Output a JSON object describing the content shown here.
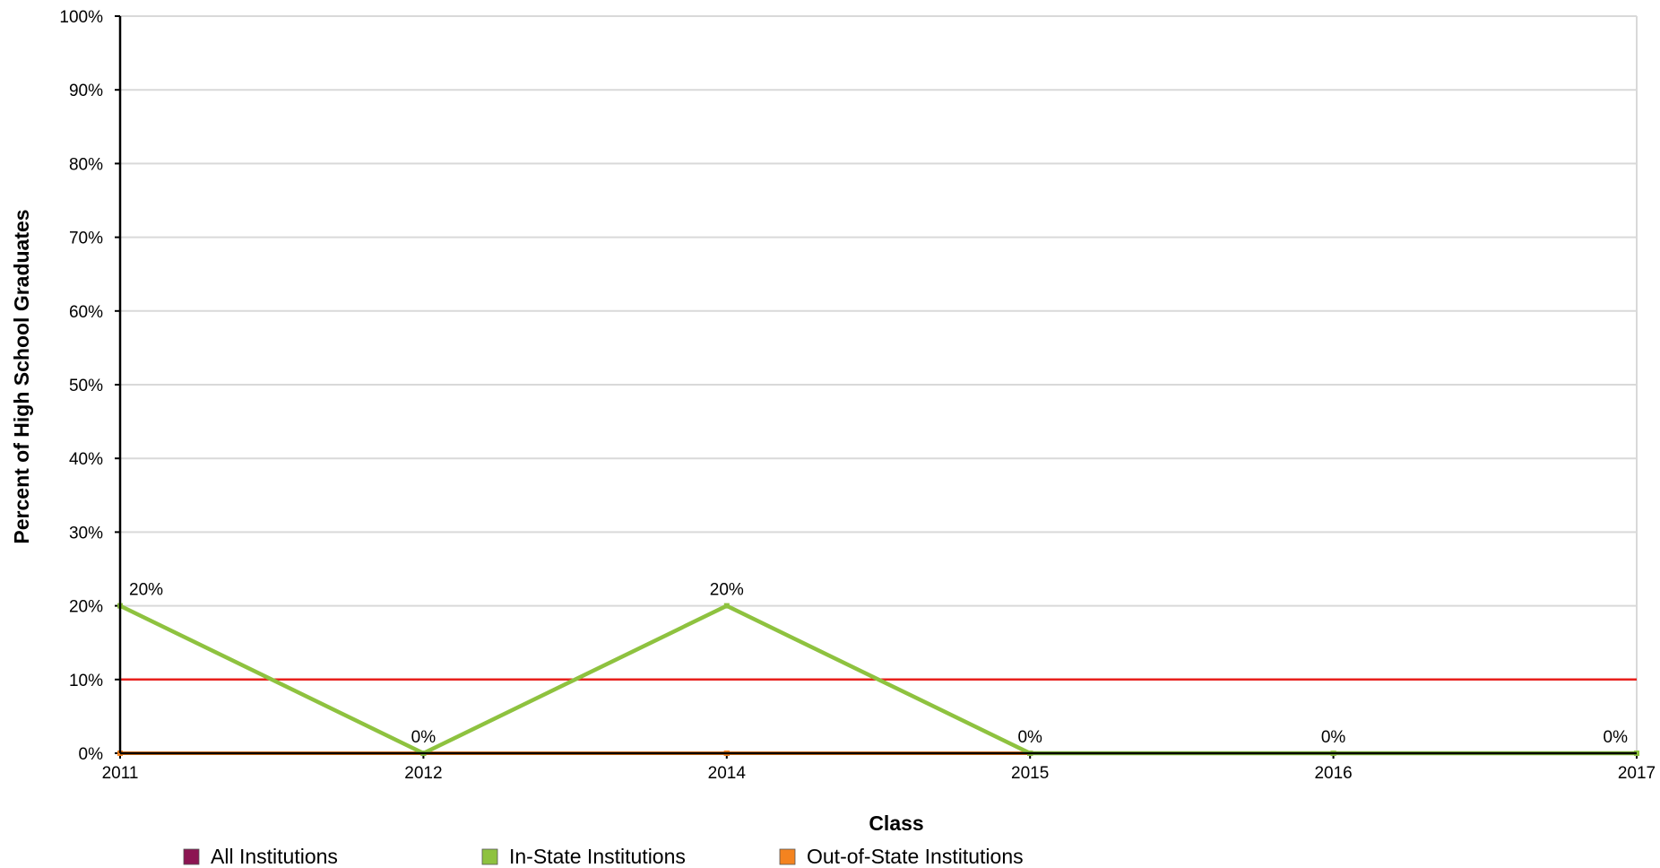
{
  "chart_data": {
    "type": "line",
    "x": [
      "2011",
      "2012",
      "2014",
      "2015",
      "2016",
      "2017"
    ],
    "xlabel": "Class",
    "ylabel": "Percent of High School Graduates",
    "ylim": [
      0,
      100
    ],
    "yticks": [
      "0%",
      "10%",
      "20%",
      "30%",
      "40%",
      "50%",
      "60%",
      "70%",
      "80%",
      "90%",
      "100%"
    ],
    "grid": true,
    "legend_position": "bottom",
    "reference_line": {
      "value": 10,
      "color": "#e8211d"
    },
    "series": [
      {
        "name": "All Institutions",
        "color": "#8c1552",
        "values": [
          0,
          0,
          0,
          0,
          0,
          0
        ]
      },
      {
        "name": "In-State Institutions",
        "color": "#8ec23f",
        "values": [
          20,
          0,
          20,
          0,
          0,
          0
        ],
        "data_labels": [
          "20%",
          "0%",
          "20%",
          "0%",
          "0%",
          "0%"
        ]
      },
      {
        "name": "Out-of-State Institutions",
        "color": "#f4831f",
        "values": [
          0,
          0,
          0,
          0,
          0,
          0
        ]
      }
    ]
  }
}
